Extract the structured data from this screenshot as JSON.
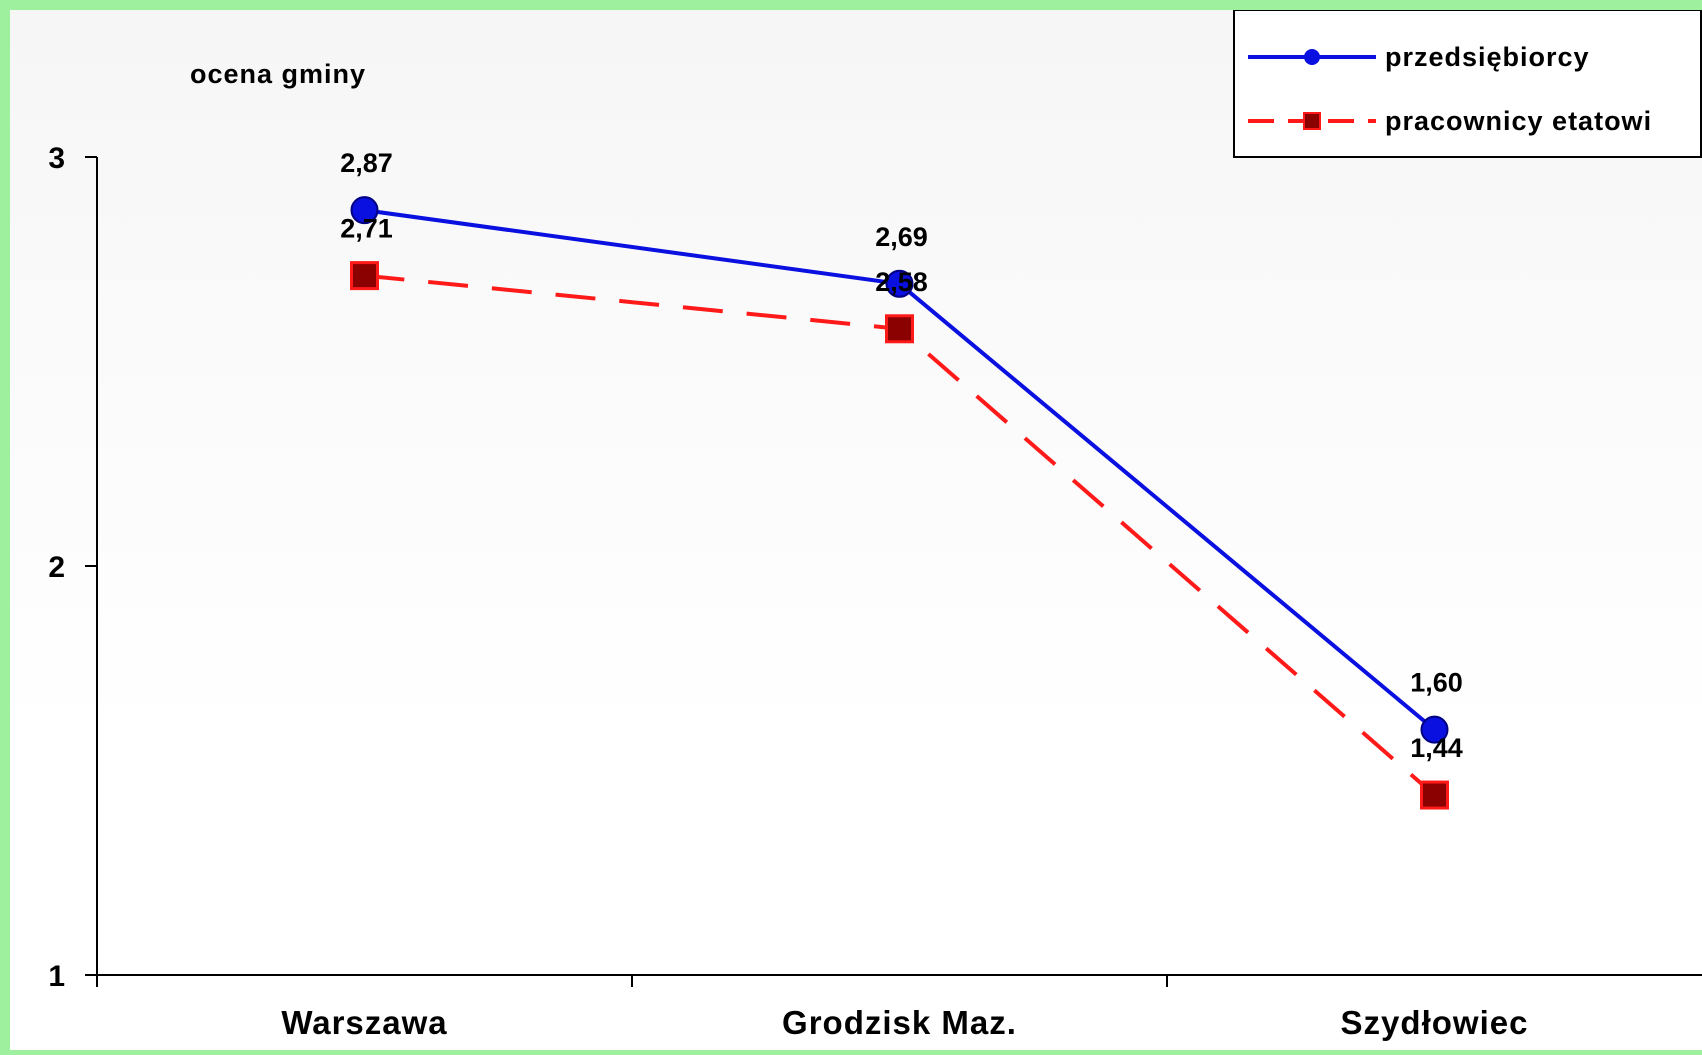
{
  "chart_data": {
    "type": "line",
    "title": "",
    "ylabel": "ocena gminy",
    "xlabel": "",
    "categories": [
      "Warszawa",
      "Grodzisk Maz.",
      "Szydłowiec"
    ],
    "ylim": [
      1,
      3
    ],
    "yticks": [
      "1",
      "2",
      "3"
    ],
    "grid": false,
    "legend_position": "top-right",
    "series": [
      {
        "name": "przedsiębiorcy",
        "values": [
          2.87,
          2.69,
          1.6
        ],
        "labels": [
          "2,87",
          "2,69",
          "1,60"
        ],
        "color": "#0a10e0",
        "marker": "circle",
        "line_style": "solid"
      },
      {
        "name": "pracownicy etatowi",
        "values": [
          2.71,
          2.58,
          1.44
        ],
        "labels": [
          "2,71",
          "2,58",
          "1,44"
        ],
        "color": "#ff1a1a",
        "marker_fill": "#8b0000",
        "marker": "square",
        "line_style": "dashed"
      }
    ]
  }
}
